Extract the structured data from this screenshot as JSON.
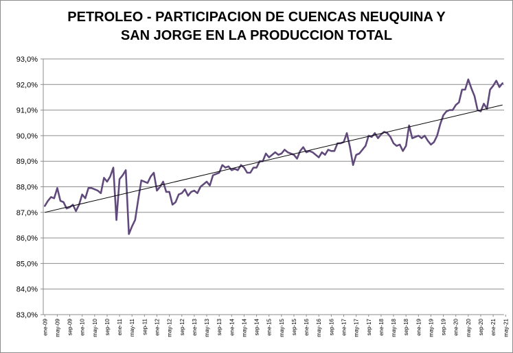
{
  "chart_data": {
    "type": "line",
    "title_lines": [
      "PETROLEO - PARTICIPACION DE CUENCAS NEUQUINA Y",
      "SAN JORGE EN LA PRODUCCION TOTAL"
    ],
    "xlabel": "",
    "ylabel": "",
    "ylim": [
      83.0,
      93.0
    ],
    "y_ticks": [
      "83,0%",
      "84,0%",
      "85,0%",
      "86,0%",
      "87,0%",
      "88,0%",
      "89,0%",
      "90,0%",
      "91,0%",
      "92,0%",
      "93,0%"
    ],
    "x_ticks": [
      "ene-09",
      "may-09",
      "sep-09",
      "ene-10",
      "may-10",
      "sep-10",
      "ene-11",
      "may-11",
      "sep-11",
      "ene-12",
      "may-12",
      "sep-12",
      "ene-13",
      "may-13",
      "sep-13",
      "ene-14",
      "may-14",
      "sep-14",
      "ene-15",
      "may-15",
      "sep-15",
      "ene-16",
      "may-16",
      "sep-16",
      "ene-17",
      "may-17",
      "sep-17",
      "ene-18",
      "may-18",
      "sep-18",
      "ene-19",
      "may-19",
      "sep-19",
      "ene-20",
      "may-20",
      "sep-20",
      "ene-21",
      "may-21"
    ],
    "grid": true,
    "legend": "none",
    "series": [
      {
        "color": "#604a7b",
        "period": "ene-09 to may-21, monthly",
        "values": [
          87.25,
          87.45,
          87.6,
          87.55,
          87.95,
          87.45,
          87.4,
          87.15,
          87.2,
          87.3,
          87.05,
          87.3,
          87.7,
          87.55,
          87.95,
          87.95,
          87.9,
          87.85,
          87.75,
          88.35,
          88.2,
          88.4,
          88.75,
          86.7,
          88.3,
          88.45,
          88.65,
          86.15,
          86.45,
          86.7,
          87.5,
          88.25,
          88.2,
          88.15,
          88.4,
          88.55,
          87.85,
          88.0,
          88.2,
          87.8,
          87.8,
          87.3,
          87.4,
          87.7,
          87.75,
          87.9,
          87.65,
          87.8,
          87.85,
          87.75,
          88.0,
          88.1,
          88.2,
          88.05,
          88.45,
          88.5,
          88.55,
          88.85,
          88.75,
          88.8,
          88.65,
          88.7,
          88.65,
          88.85,
          88.75,
          88.55,
          88.55,
          88.75,
          88.75,
          89.0,
          89.0,
          89.3,
          89.15,
          89.25,
          89.35,
          89.25,
          89.3,
          89.45,
          89.35,
          89.3,
          89.25,
          89.1,
          89.4,
          89.55,
          89.35,
          89.4,
          89.35,
          89.25,
          89.15,
          89.35,
          89.25,
          89.45,
          89.4,
          89.4,
          89.7,
          89.7,
          89.75,
          90.1,
          89.55,
          88.85,
          89.25,
          89.3,
          89.45,
          89.6,
          90.0,
          89.95,
          90.1,
          89.9,
          90.05,
          90.15,
          90.1,
          89.95,
          89.7,
          89.6,
          89.65,
          89.4,
          89.6,
          90.4,
          89.9,
          89.95,
          90.0,
          89.9,
          90.0,
          89.8,
          89.65,
          89.75,
          90.0,
          90.45,
          90.8,
          90.95,
          91.0,
          91.0,
          91.2,
          91.3,
          91.8,
          91.8,
          92.2,
          91.85,
          91.55,
          91.0,
          90.95,
          91.25,
          91.05,
          91.8,
          91.95,
          92.15,
          91.9,
          92.05
        ]
      }
    ],
    "trendline": {
      "type": "linear",
      "color": "#000000",
      "start": 87.0,
      "end": 91.2
    }
  }
}
